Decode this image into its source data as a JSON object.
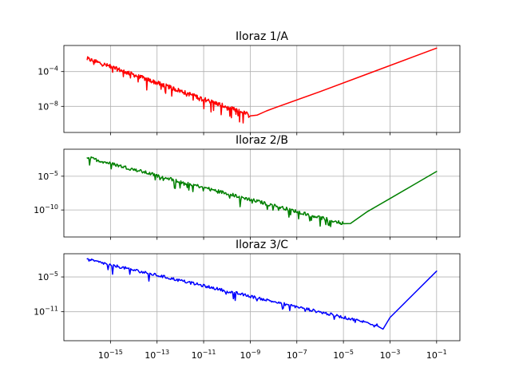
{
  "chart_data": [
    {
      "type": "line",
      "title": "Iloraz 1/A",
      "xscale": "log",
      "yscale": "log",
      "xlim": [
        1e-17,
        1
      ],
      "ylim": [
        1e-11,
        0.1
      ],
      "grid": true,
      "x_ticks": [
        1e-15,
        1e-13,
        1e-11,
        1e-09,
        1e-07,
        1e-05,
        0.001,
        0.1
      ],
      "x_tick_labels": [],
      "y_ticks": [
        0.0001,
        1e-08
      ],
      "y_tick_labels": [
        {
          "base": "10",
          "exp": "−4"
        },
        {
          "base": "10",
          "exp": "−8"
        }
      ],
      "series": [
        {
          "color": "#ff0000",
          "noisy_segment": {
            "x_start": 1e-16,
            "x_end": 1e-09,
            "y_start": 0.003,
            "y_end": 1e-09
          },
          "points": [
            [
              2e-09,
              1e-09
            ],
            [
              5e-09,
              3e-09
            ],
            [
              1e-08,
              6e-09
            ],
            [
              1e-06,
              5e-07
            ],
            [
              0.0001,
              5e-05
            ],
            [
              0.01,
              0.005
            ],
            [
              0.1,
              0.05
            ]
          ]
        }
      ]
    },
    {
      "type": "line",
      "title": "Iloraz 2/B",
      "xscale": "log",
      "yscale": "log",
      "xlim": [
        1e-17,
        1
      ],
      "ylim": [
        1e-14,
        0.1
      ],
      "grid": true,
      "x_ticks": [
        1e-15,
        1e-13,
        1e-11,
        1e-09,
        1e-07,
        1e-05,
        0.001,
        0.1
      ],
      "x_tick_labels": [],
      "y_ticks": [
        1e-05,
        1e-10
      ],
      "y_tick_labels": [
        {
          "base": "10",
          "exp": "−5"
        },
        {
          "base": "10",
          "exp": "−10"
        }
      ],
      "series": [
        {
          "color": "#008000",
          "noisy_segment": {
            "x_start": 1e-16,
            "x_end": 1e-05,
            "y_start": 0.006,
            "y_end": 1e-12
          },
          "points": [
            [
              2e-05,
              1e-12
            ],
            [
              0.0001,
              5e-11
            ],
            [
              0.001,
              5e-09
            ],
            [
              0.01,
              5e-07
            ],
            [
              0.1,
              5e-05
            ]
          ]
        }
      ]
    },
    {
      "type": "line",
      "title": "Iloraz 3/C",
      "xscale": "log",
      "yscale": "log",
      "xlim": [
        1e-17,
        1
      ],
      "ylim": [
        1e-16,
        0.1
      ],
      "grid": true,
      "x_ticks": [
        1e-15,
        1e-13,
        1e-11,
        1e-09,
        1e-07,
        1e-05,
        0.001,
        0.1
      ],
      "x_tick_labels": [
        {
          "base": "10",
          "exp": "−15"
        },
        {
          "base": "10",
          "exp": "−13"
        },
        {
          "base": "10",
          "exp": "−11"
        },
        {
          "base": "10",
          "exp": "−9"
        },
        {
          "base": "10",
          "exp": "−7"
        },
        {
          "base": "10",
          "exp": "−5"
        },
        {
          "base": "10",
          "exp": "−3"
        },
        {
          "base": "10",
          "exp": "−1"
        }
      ],
      "y_ticks": [
        1e-05,
        1e-11
      ],
      "y_tick_labels": [
        {
          "base": "10",
          "exp": "−5"
        },
        {
          "base": "10",
          "exp": "−11"
        }
      ],
      "series": [
        {
          "color": "#0000ff",
          "noisy_segment": {
            "x_start": 1e-16,
            "x_end": 0.0003,
            "y_start": 0.01,
            "y_end": 5e-14
          },
          "points": [
            [
              0.0005,
              1e-14
            ],
            [
              0.001,
              1e-12
            ],
            [
              0.01,
              1e-08
            ],
            [
              0.1,
              0.0001
            ]
          ]
        }
      ]
    }
  ]
}
